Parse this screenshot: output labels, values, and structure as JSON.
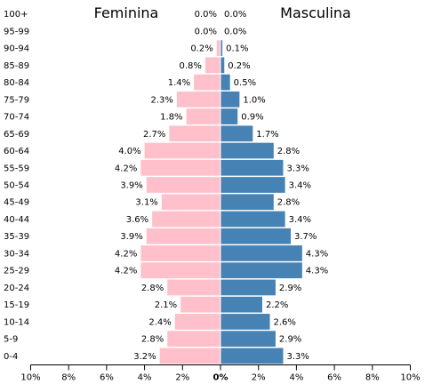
{
  "chart_data": {
    "type": "bar",
    "orientation": "horizontal-pyramid",
    "categories": [
      "100+",
      "95-99",
      "90-94",
      "85-89",
      "80-84",
      "75-79",
      "70-74",
      "65-69",
      "60-64",
      "55-59",
      "50-54",
      "45-49",
      "40-44",
      "35-39",
      "30-34",
      "25-29",
      "20-24",
      "15-19",
      "10-14",
      "5-9",
      "0-4"
    ],
    "series": [
      {
        "name": "Feminina",
        "color": "#ffc0cb",
        "values": [
          0.0,
          0.0,
          0.2,
          0.8,
          1.4,
          2.3,
          1.8,
          2.7,
          4.0,
          4.2,
          3.9,
          3.1,
          3.6,
          3.9,
          4.2,
          4.2,
          2.8,
          2.1,
          2.4,
          2.8,
          3.2
        ],
        "labels": [
          "0.0%",
          "0.0%",
          "0.2%",
          "0.8%",
          "1.4%",
          "2.3%",
          "1.8%",
          "2.7%",
          "4.0%",
          "4.2%",
          "3.9%",
          "3.1%",
          "3.6%",
          "3.9%",
          "4.2%",
          "4.2%",
          "2.8%",
          "2.1%",
          "2.4%",
          "2.8%",
          "3.2%"
        ]
      },
      {
        "name": "Masculina",
        "color": "#4682b4",
        "values": [
          0.0,
          0.0,
          0.1,
          0.2,
          0.5,
          1.0,
          0.9,
          1.7,
          2.8,
          3.3,
          3.4,
          2.8,
          3.4,
          3.7,
          4.3,
          4.3,
          2.9,
          2.2,
          2.6,
          2.9,
          3.3
        ],
        "labels": [
          "0.0%",
          "0.0%",
          "0.1%",
          "0.2%",
          "0.5%",
          "1.0%",
          "0.9%",
          "1.7%",
          "2.8%",
          "3.3%",
          "3.4%",
          "2.8%",
          "3.4%",
          "3.7%",
          "4.3%",
          "4.3%",
          "2.9%",
          "2.2%",
          "2.6%",
          "2.9%",
          "3.3%"
        ]
      }
    ],
    "x_ticks": [
      "10%",
      "8%",
      "6%",
      "4%",
      "2%",
      "0%",
      "2%",
      "4%",
      "6%",
      "8%",
      "10%"
    ],
    "xlim": [
      -10,
      10
    ],
    "grid": false
  }
}
